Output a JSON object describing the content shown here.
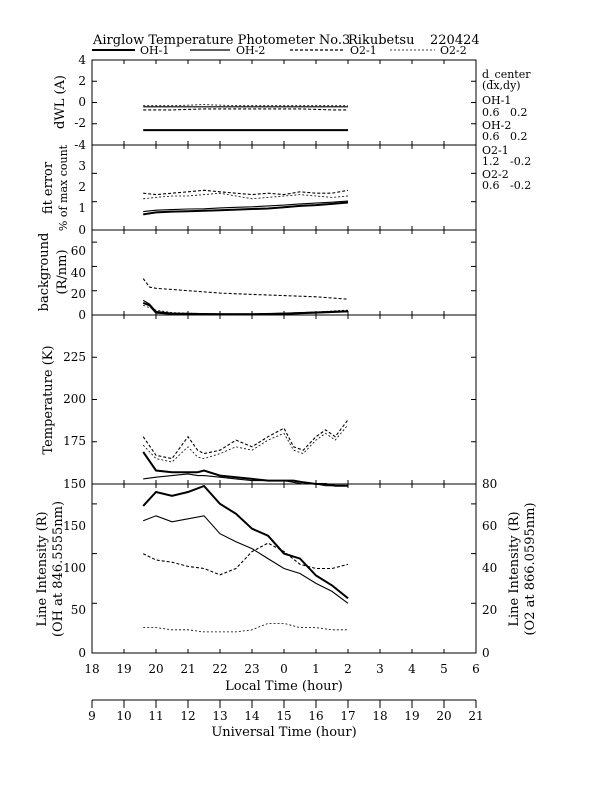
{
  "title": {
    "main": "Airglow Temperature Photometer No.3",
    "site": "Rikubetsu",
    "date": "220424"
  },
  "legend": [
    "OH-1",
    "OH-2",
    "O2-1",
    "O2-2"
  ],
  "right_notes": {
    "header1": "d_center",
    "header2": "(dx,dy)",
    "items": [
      {
        "name": "OH-1",
        "value": "0.6   0.2"
      },
      {
        "name": "OH-2",
        "value": "0.6   0.2"
      },
      {
        "name": "O2-1",
        "value": "1.2   -0.2"
      },
      {
        "name": "O2-2",
        "value": "0.6   -0.2"
      }
    ]
  },
  "axes": {
    "local_time": {
      "label": "Local Time (hour)",
      "ticks": [
        "18",
        "19",
        "20",
        "21",
        "22",
        "23",
        "0",
        "1",
        "2",
        "3",
        "4",
        "5",
        "6"
      ]
    },
    "universal_time": {
      "label": "Universal Time (hour)",
      "ticks": [
        "9",
        "10",
        "11",
        "12",
        "13",
        "14",
        "15",
        "16",
        "17",
        "18",
        "19",
        "20",
        "21"
      ]
    }
  },
  "panels": {
    "dwl": {
      "ylabel": "dWL (A)",
      "ticks": [
        "4",
        "2",
        "0",
        "-2",
        "-4"
      ]
    },
    "fit": {
      "ylabel1": "fit error",
      "ylabel2": "% of max count",
      "ticks": [
        "3",
        "2",
        "1",
        "0"
      ]
    },
    "bg": {
      "ylabel1": "background",
      "ylabel2": "(R/nm)",
      "ticks": [
        "60",
        "40",
        "20",
        "0"
      ]
    },
    "temp": {
      "ylabel": "Temperature (K)",
      "ticks": [
        "225",
        "200",
        "175",
        "150"
      ]
    },
    "int": {
      "ylabel1": "Line Intensity (R)",
      "ylabel2": "(OH at 846.5555nm)",
      "rlabel1": "Line Intensity (R)",
      "rlabel2": "(O2 at 866.0595nm)",
      "ticks": [
        "150",
        "100",
        "50",
        "0"
      ],
      "rticks": [
        "80",
        "60",
        "40",
        "20",
        "0"
      ]
    }
  },
  "chart_data": [
    {
      "type": "line",
      "panel": "dWL",
      "ylabel": "dWL (A)",
      "ylim": [
        -4,
        4
      ],
      "xlabel": "Local Time (hour)",
      "xlim": [
        18,
        30
      ],
      "x": [
        19.6,
        20.5,
        21.5,
        22.5,
        23.5,
        24.5,
        25.5,
        26.0
      ],
      "series": [
        {
          "name": "OH-1",
          "values": [
            -2.6,
            -2.6,
            -2.6,
            -2.6,
            -2.6,
            -2.6,
            -2.6,
            -2.6
          ]
        },
        {
          "name": "OH-2",
          "values": [
            -0.4,
            -0.4,
            -0.4,
            -0.4,
            -0.4,
            -0.4,
            -0.4,
            -0.4
          ]
        },
        {
          "name": "O2-1",
          "values": [
            -0.7,
            -0.7,
            -0.6,
            -0.6,
            -0.6,
            -0.6,
            -0.7,
            -0.7
          ]
        },
        {
          "name": "O2-2",
          "values": [
            -0.3,
            -0.3,
            -0.2,
            -0.3,
            -0.3,
            -0.3,
            -0.3,
            -0.3
          ]
        }
      ]
    },
    {
      "type": "line",
      "panel": "fit error",
      "ylabel": "fit error % of max count",
      "ylim": [
        0,
        3
      ],
      "xlim": [
        18,
        30
      ],
      "x": [
        19.6,
        20.0,
        20.5,
        21.0,
        21.5,
        22.0,
        22.5,
        23.0,
        23.5,
        24.0,
        24.5,
        25.0,
        25.5,
        26.0
      ],
      "series": [
        {
          "name": "OH-1",
          "values": [
            0.55,
            0.62,
            0.65,
            0.66,
            0.68,
            0.7,
            0.72,
            0.74,
            0.76,
            0.8,
            0.85,
            0.88,
            0.92,
            0.97
          ]
        },
        {
          "name": "OH-2",
          "values": [
            0.65,
            0.7,
            0.72,
            0.74,
            0.75,
            0.78,
            0.8,
            0.82,
            0.85,
            0.88,
            0.92,
            0.95,
            0.98,
            1.02
          ]
        },
        {
          "name": "O2-1",
          "values": [
            1.3,
            1.25,
            1.3,
            1.35,
            1.4,
            1.35,
            1.3,
            1.25,
            1.3,
            1.25,
            1.35,
            1.3,
            1.3,
            1.4
          ]
        },
        {
          "name": "O2-2",
          "values": [
            1.1,
            1.15,
            1.2,
            1.2,
            1.25,
            1.3,
            1.2,
            1.1,
            1.15,
            1.2,
            1.25,
            1.2,
            1.15,
            1.2
          ]
        }
      ]
    },
    {
      "type": "line",
      "panel": "background",
      "ylabel": "background (R/nm)",
      "ylim": [
        0,
        70
      ],
      "xlim": [
        18,
        30
      ],
      "x": [
        19.6,
        19.8,
        20.0,
        20.5,
        21.0,
        22.0,
        23.0,
        24.0,
        25.0,
        26.0
      ],
      "series": [
        {
          "name": "OH-1",
          "values": [
            10,
            8,
            2,
            1,
            1,
            0.5,
            0.5,
            1,
            2,
            3
          ]
        },
        {
          "name": "OH-2",
          "values": [
            12,
            9,
            3,
            1.5,
            1,
            1,
            1,
            1.5,
            2.5,
            3.5
          ]
        },
        {
          "name": "O2-1",
          "values": [
            30,
            23,
            22,
            21,
            20,
            18,
            17,
            16,
            15,
            13
          ]
        },
        {
          "name": "O2-2",
          "values": [
            8,
            6,
            4,
            2,
            1.5,
            1,
            1,
            1.5,
            2.5,
            4
          ]
        }
      ]
    },
    {
      "type": "line",
      "panel": "temperature",
      "ylabel": "Temperature (K)",
      "ylim": [
        150,
        250
      ],
      "xlim": [
        18,
        30
      ],
      "x": [
        19.6,
        20.0,
        20.5,
        21.0,
        21.3,
        21.5,
        22.0,
        22.5,
        23.0,
        23.5,
        24.0,
        24.3,
        24.6,
        25.0,
        25.3,
        25.6,
        26.0
      ],
      "series": [
        {
          "name": "OH-1",
          "values": [
            169,
            158,
            157,
            157,
            157,
            158,
            155,
            154,
            153,
            152,
            152,
            152,
            151,
            150,
            150,
            149,
            149
          ]
        },
        {
          "name": "OH-2",
          "values": [
            153,
            154,
            155,
            156,
            155,
            155,
            154,
            153,
            152,
            152,
            152,
            151,
            150,
            150,
            149,
            149,
            149
          ]
        },
        {
          "name": "O2-1",
          "values": [
            178,
            167,
            165,
            178,
            170,
            168,
            170,
            176,
            172,
            178,
            183,
            172,
            170,
            178,
            182,
            178,
            188
          ]
        },
        {
          "name": "O2-2",
          "values": [
            173,
            165,
            163,
            172,
            166,
            165,
            168,
            172,
            170,
            176,
            180,
            170,
            168,
            176,
            180,
            176,
            185
          ]
        }
      ]
    },
    {
      "type": "line",
      "panel": "line intensity",
      "ylabel": "Line Intensity (R) (OH at 846.5555nm)",
      "y2label": "Line Intensity (R) (O2 at 866.0595nm)",
      "ylim": [
        0,
        170
      ],
      "y2lim": [
        0,
        80
      ],
      "xlim": [
        18,
        30
      ],
      "x": [
        19.6,
        20.0,
        20.5,
        21.0,
        21.5,
        22.0,
        22.5,
        23.0,
        23.5,
        24.0,
        24.5,
        25.0,
        25.5,
        26.0
      ],
      "series": [
        {
          "name": "OH-1",
          "axis": "left",
          "values": [
            148,
            162,
            158,
            162,
            168,
            150,
            140,
            125,
            118,
            100,
            95,
            78,
            68,
            55
          ]
        },
        {
          "name": "OH-2",
          "axis": "left",
          "values": [
            133,
            138,
            132,
            135,
            138,
            120,
            112,
            105,
            95,
            85,
            80,
            70,
            62,
            50
          ]
        },
        {
          "name": "O2-1",
          "axis": "right",
          "values": [
            47,
            44,
            43,
            41,
            40,
            37,
            40,
            48,
            52,
            48,
            42,
            40,
            40,
            42
          ]
        },
        {
          "name": "O2-2",
          "axis": "right",
          "values": [
            12,
            12,
            11,
            11,
            10,
            10,
            10,
            11,
            14,
            14,
            12,
            12,
            11,
            11
          ]
        }
      ]
    }
  ],
  "colors": {
    "axis": "#000000",
    "line": "#000000",
    "background": "#ffffff"
  }
}
